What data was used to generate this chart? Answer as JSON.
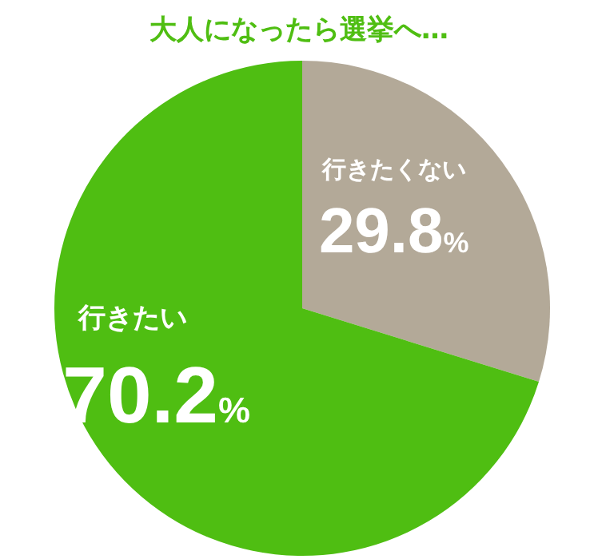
{
  "chart_data": {
    "type": "pie",
    "title": "大人になったら選挙へ…",
    "categories": [
      "行きたくない",
      "行きたい"
    ],
    "values": [
      29.8,
      70.2
    ],
    "colors": [
      "#b3a998",
      "#4fbe12"
    ],
    "value_labels": [
      "29.8%",
      "70.2%"
    ]
  }
}
